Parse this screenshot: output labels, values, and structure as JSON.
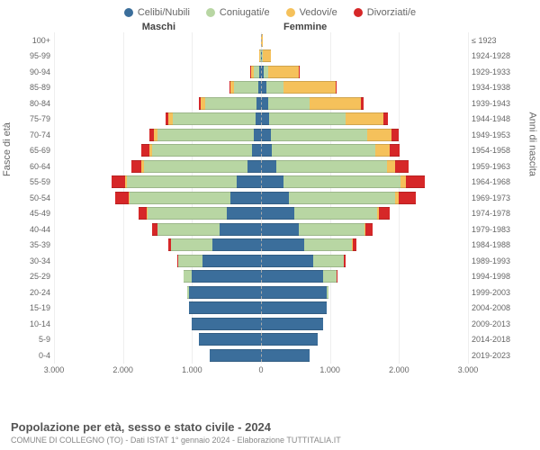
{
  "legend": [
    {
      "label": "Celibi/Nubili",
      "color": "#3b6e9b"
    },
    {
      "label": "Coniugati/e",
      "color": "#b8d6a3"
    },
    {
      "label": "Vedovi/e",
      "color": "#f5c15b"
    },
    {
      "label": "Divorziati/e",
      "color": "#d62728"
    }
  ],
  "headers": {
    "left": "Maschi",
    "right": "Femmine"
  },
  "axis_titles": {
    "left": "Fasce di età",
    "right": "Anni di nascita"
  },
  "x_axis": {
    "max": 3000,
    "ticks": [
      "3.000",
      "2.000",
      "1.000",
      "0",
      "1.000",
      "2.000",
      "3.000"
    ]
  },
  "footer": {
    "title": "Popolazione per età, sesso e stato civile - 2024",
    "sub": "COMUNE DI COLLEGNO (TO) - Dati ISTAT 1° gennaio 2024 - Elaborazione TUTTITALIA.IT"
  },
  "colors": {
    "celibi": "#3b6e9b",
    "coniugati": "#b8d6a3",
    "vedovi": "#f5c15b",
    "divorziati": "#d62728"
  },
  "rows": [
    {
      "age": "100+",
      "birth": "≤ 1923",
      "m": [
        0,
        0,
        5,
        0
      ],
      "f": [
        0,
        0,
        30,
        0
      ]
    },
    {
      "age": "95-99",
      "birth": "1924-1928",
      "m": [
        5,
        10,
        15,
        0
      ],
      "f": [
        10,
        10,
        120,
        0
      ]
    },
    {
      "age": "90-94",
      "birth": "1929-1933",
      "m": [
        20,
        80,
        50,
        5
      ],
      "f": [
        40,
        60,
        450,
        10
      ]
    },
    {
      "age": "85-89",
      "birth": "1934-1938",
      "m": [
        40,
        350,
        60,
        10
      ],
      "f": [
        80,
        250,
        750,
        20
      ]
    },
    {
      "age": "80-84",
      "birth": "1939-1943",
      "m": [
        60,
        750,
        70,
        20
      ],
      "f": [
        100,
        600,
        750,
        40
      ]
    },
    {
      "age": "75-79",
      "birth": "1944-1948",
      "m": [
        80,
        1200,
        60,
        40
      ],
      "f": [
        120,
        1100,
        550,
        70
      ]
    },
    {
      "age": "70-74",
      "birth": "1949-1953",
      "m": [
        100,
        1400,
        50,
        70
      ],
      "f": [
        140,
        1400,
        350,
        110
      ]
    },
    {
      "age": "65-69",
      "birth": "1954-1958",
      "m": [
        130,
        1450,
        40,
        110
      ],
      "f": [
        160,
        1500,
        200,
        150
      ]
    },
    {
      "age": "60-64",
      "birth": "1959-1963",
      "m": [
        200,
        1500,
        30,
        150
      ],
      "f": [
        220,
        1600,
        120,
        200
      ]
    },
    {
      "age": "55-59",
      "birth": "1964-1968",
      "m": [
        350,
        1600,
        20,
        200
      ],
      "f": [
        320,
        1700,
        80,
        280
      ]
    },
    {
      "age": "50-54",
      "birth": "1969-1973",
      "m": [
        450,
        1450,
        15,
        200
      ],
      "f": [
        400,
        1550,
        50,
        250
      ]
    },
    {
      "age": "45-49",
      "birth": "1974-1978",
      "m": [
        500,
        1150,
        10,
        120
      ],
      "f": [
        480,
        1200,
        30,
        160
      ]
    },
    {
      "age": "40-44",
      "birth": "1979-1983",
      "m": [
        600,
        900,
        5,
        80
      ],
      "f": [
        550,
        950,
        15,
        100
      ]
    },
    {
      "age": "35-39",
      "birth": "1984-1988",
      "m": [
        700,
        600,
        2,
        40
      ],
      "f": [
        620,
        700,
        8,
        50
      ]
    },
    {
      "age": "30-34",
      "birth": "1989-1993",
      "m": [
        850,
        350,
        0,
        15
      ],
      "f": [
        750,
        450,
        3,
        20
      ]
    },
    {
      "age": "25-29",
      "birth": "1994-1998",
      "m": [
        1000,
        120,
        0,
        5
      ],
      "f": [
        900,
        200,
        0,
        8
      ]
    },
    {
      "age": "20-24",
      "birth": "1999-2003",
      "m": [
        1050,
        15,
        0,
        0
      ],
      "f": [
        950,
        30,
        0,
        0
      ]
    },
    {
      "age": "15-19",
      "birth": "2004-2008",
      "m": [
        1050,
        0,
        0,
        0
      ],
      "f": [
        950,
        0,
        0,
        0
      ]
    },
    {
      "age": "10-14",
      "birth": "2009-2013",
      "m": [
        1000,
        0,
        0,
        0
      ],
      "f": [
        900,
        0,
        0,
        0
      ]
    },
    {
      "age": "5-9",
      "birth": "2014-2018",
      "m": [
        900,
        0,
        0,
        0
      ],
      "f": [
        820,
        0,
        0,
        0
      ]
    },
    {
      "age": "0-4",
      "birth": "2019-2023",
      "m": [
        750,
        0,
        0,
        0
      ],
      "f": [
        700,
        0,
        0,
        0
      ]
    }
  ]
}
